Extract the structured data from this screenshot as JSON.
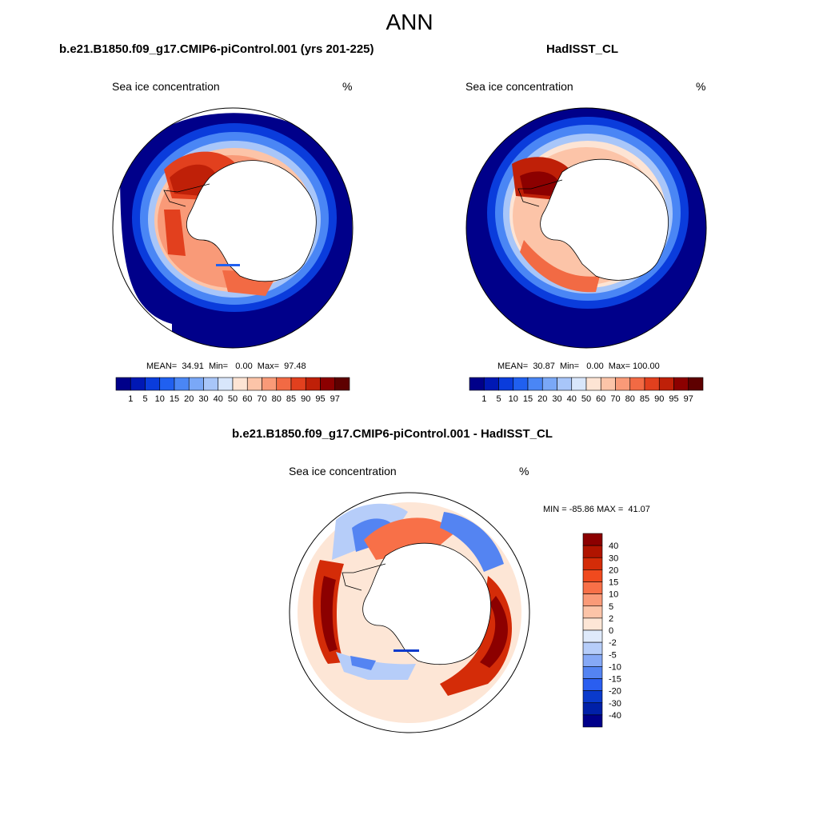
{
  "main_title": "ANN",
  "panels": [
    {
      "title": "b.e21.B1850.f09_g17.CMIP6-piControl.001 (yrs 201-225)",
      "field": "Sea ice concentration",
      "units": "%",
      "stats": "MEAN=  34.91  Min=   0.00  Max=  97.48"
    },
    {
      "title": "HadISST_CL",
      "field": "Sea ice concentration",
      "units": "%",
      "stats": "MEAN=  30.87  Min=   0.00  Max= 100.00"
    },
    {
      "title": "b.e21.B1850.f09_g17.CMIP6-piControl.001 - HadISST_CL",
      "field": "Sea ice concentration",
      "units": "%",
      "stats": "MIN = -85.86 MAX =  41.07"
    }
  ],
  "colorbar_concentration": {
    "labels": [
      "1",
      "5",
      "10",
      "15",
      "20",
      "30",
      "40",
      "50",
      "60",
      "70",
      "80",
      "85",
      "90",
      "95",
      "97"
    ],
    "colors": [
      "#00008a",
      "#0018b4",
      "#0a3cdc",
      "#2060f0",
      "#4a86f5",
      "#7aa8f7",
      "#a8c6f9",
      "#d8e6fb",
      "#fde4d4",
      "#fcc4a8",
      "#f99a78",
      "#f26a44",
      "#e2401e",
      "#bf2008",
      "#8c0000",
      "#5e0000"
    ]
  },
  "colorbar_difference": {
    "labels": [
      "40",
      "30",
      "20",
      "15",
      "10",
      "5",
      "2",
      "0",
      "-2",
      "-5",
      "-10",
      "-15",
      "-20",
      "-30",
      "-40"
    ],
    "colors": [
      "#8c0000",
      "#b01400",
      "#d42c08",
      "#f04a1e",
      "#f87048",
      "#fa9a78",
      "#fcc4a8",
      "#fde6d6",
      "#dfeafb",
      "#b6cdf9",
      "#86a9f6",
      "#5484f2",
      "#2a5ef0",
      "#0a3acc",
      "#0020a8",
      "#00008a"
    ]
  },
  "chart_data": [
    {
      "type": "heatmap",
      "title": "b.e21.B1850.f09_g17.CMIP6-piControl.001 (yrs 201-225)",
      "variable": "Sea ice concentration",
      "units": "%",
      "projection": "south polar stereographic",
      "mean": 34.91,
      "min": 0.0,
      "max": 97.48,
      "levels": [
        1,
        5,
        10,
        15,
        20,
        30,
        40,
        50,
        60,
        70,
        80,
        85,
        90,
        95,
        97
      ]
    },
    {
      "type": "heatmap",
      "title": "HadISST_CL",
      "variable": "Sea ice concentration",
      "units": "%",
      "projection": "south polar stereographic",
      "mean": 30.87,
      "min": 0.0,
      "max": 100.0,
      "levels": [
        1,
        5,
        10,
        15,
        20,
        30,
        40,
        50,
        60,
        70,
        80,
        85,
        90,
        95,
        97
      ]
    },
    {
      "type": "heatmap",
      "title": "b.e21.B1850.f09_g17.CMIP6-piControl.001 - HadISST_CL",
      "variable": "Sea ice concentration",
      "units": "%",
      "projection": "south polar stereographic",
      "min": -85.86,
      "max": 41.07,
      "levels": [
        -40,
        -30,
        -20,
        -15,
        -10,
        -5,
        -2,
        0,
        2,
        5,
        10,
        15,
        20,
        30,
        40
      ]
    }
  ]
}
